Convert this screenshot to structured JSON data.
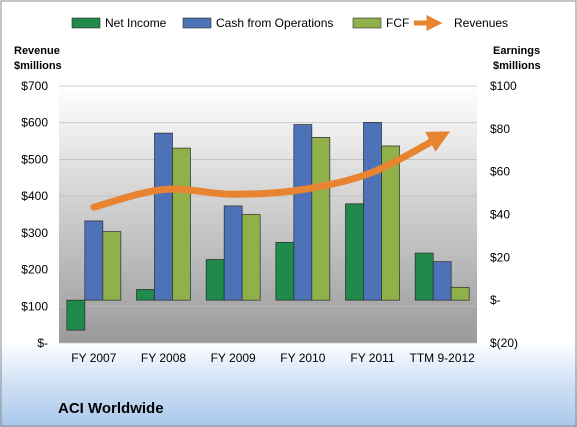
{
  "chart_data": {
    "type": "bar",
    "title": "ACI Worldwide",
    "categories": [
      "FY 2007",
      "FY 2008",
      "FY 2009",
      "FY 2010",
      "FY 2011",
      "TTM 9-2012"
    ],
    "left_axis": {
      "label_line1": "Revenue",
      "label_line2": "$millions",
      "ticks": [
        "$-",
        "$100",
        "$200",
        "$300",
        "$400",
        "$500",
        "$600",
        "$700"
      ],
      "ylim": [
        0,
        700
      ]
    },
    "right_axis": {
      "label_line1": "Earnings",
      "label_line2": "$millions",
      "ticks": [
        "$(20)",
        "$-",
        "$20",
        "$40",
        "$60",
        "$80",
        "$100"
      ],
      "ylim": [
        -20,
        100
      ]
    },
    "series": [
      {
        "name": "Net Income",
        "axis": "right",
        "color": "#1f8a4c",
        "values": [
          -14,
          5,
          19,
          27,
          45,
          22
        ]
      },
      {
        "name": "Cash from Operations",
        "axis": "right",
        "color": "#4e72b8",
        "values": [
          37,
          78,
          44,
          82,
          83,
          18
        ]
      },
      {
        "name": "FCF",
        "axis": "right",
        "color": "#90b04a",
        "values": [
          32,
          71,
          40,
          76,
          72,
          6
        ]
      },
      {
        "name": "Revenues",
        "axis": "left",
        "type": "line",
        "color": "#e8832f",
        "values": [
          370,
          418,
          405,
          418,
          465,
          565
        ]
      }
    ],
    "legend_position": "top",
    "grid": true
  }
}
